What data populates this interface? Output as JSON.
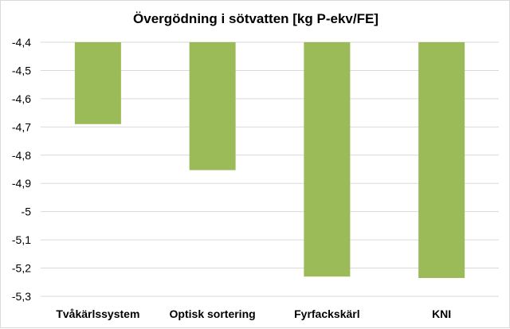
{
  "chart_data": {
    "type": "bar",
    "title": "Övergödning i sötvatten [kg P-ekv/FE]",
    "xlabel": "",
    "ylabel": "",
    "categories": [
      "Tvåkärlssystem",
      "Optisk sortering",
      "Fyrfackskärl",
      "KNI"
    ],
    "values": [
      -4.69,
      -4.853,
      -5.23,
      -5.235
    ],
    "ylim": [
      -5.3,
      -4.4
    ],
    "baseline": -4.4,
    "yticks": [
      -4.4,
      -4.5,
      -4.6,
      -4.7,
      -4.8,
      -4.9,
      -5,
      -5.1,
      -5.2,
      -5.3
    ],
    "ytick_labels": [
      "-4,4",
      "-4,5",
      "-4,6",
      "-4,7",
      "-4,8",
      "-4,9",
      "-5",
      "-5,1",
      "-5,2",
      "-5,3"
    ],
    "grid": true,
    "legend": "none",
    "colors": {
      "bar": "#9bbb59",
      "grid": "#d9d9d9",
      "axis": "#d9d9d9"
    }
  }
}
